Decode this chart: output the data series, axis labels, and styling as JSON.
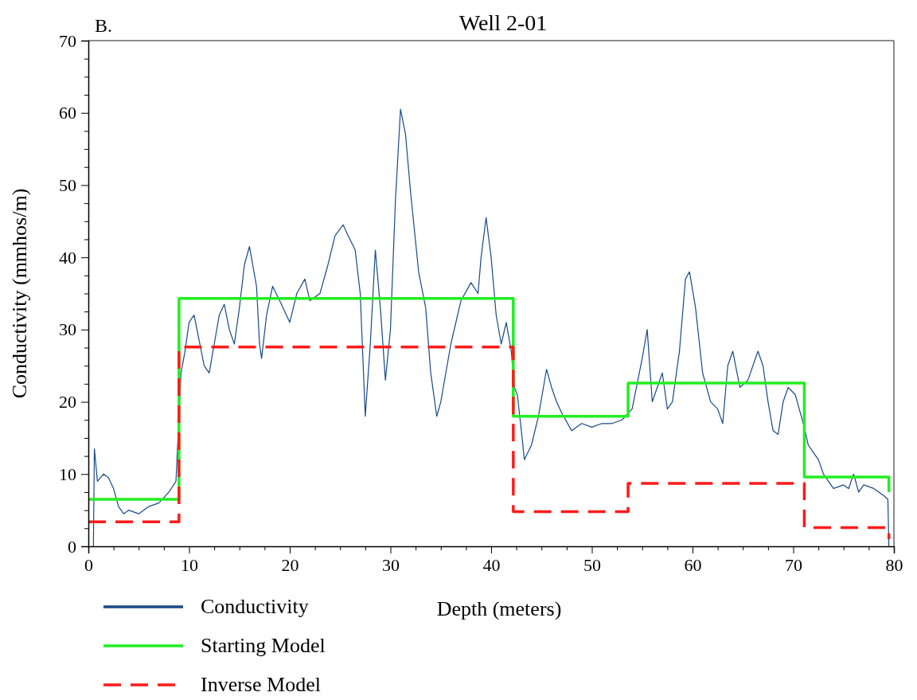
{
  "chart_data": {
    "type": "line",
    "title": "Well 2-01",
    "xlabel": "Depth (meters)",
    "ylabel": "Conductivity (mmhos/m)",
    "annotations": [
      "B."
    ],
    "xlim": [
      0,
      80
    ],
    "ylim": [
      0,
      70
    ],
    "xticks": [
      0,
      {
        "value": 2.5,
        "label": null
      },
      {
        "value": 5,
        "label": null
      },
      {
        "value": 7.5,
        "label": null
      },
      10,
      {
        "value": 12.5,
        "label": null
      },
      {
        "value": 15,
        "label": null
      },
      {
        "value": 17.5,
        "label": null
      },
      20,
      {
        "value": 22.5,
        "label": null
      },
      {
        "value": 25,
        "label": null
      },
      {
        "value": 27.5,
        "label": null
      },
      30,
      {
        "value": 32.5,
        "label": null
      },
      {
        "value": 35,
        "label": null
      },
      {
        "value": 37.5,
        "label": null
      },
      40,
      {
        "value": 42.5,
        "label": null
      },
      {
        "value": 45,
        "label": null
      },
      {
        "value": 47.5,
        "label": null
      },
      50,
      {
        "value": 52.5,
        "label": null
      },
      {
        "value": 55,
        "label": null
      },
      {
        "value": 57.5,
        "label": null
      },
      60,
      {
        "value": 62.5,
        "label": null
      },
      {
        "value": 65,
        "label": null
      },
      {
        "value": 67.5,
        "label": null
      },
      70,
      {
        "value": 72.5,
        "label": null
      },
      {
        "value": 75,
        "label": null
      },
      {
        "value": 77.5,
        "label": null
      },
      80
    ],
    "yticks": [
      0,
      {
        "value": 2.5,
        "label": null
      },
      {
        "value": 5,
        "label": null
      },
      {
        "value": 7.5,
        "label": null
      },
      10,
      {
        "value": 12.5,
        "label": null
      },
      {
        "value": 15,
        "label": null
      },
      {
        "value": 17.5,
        "label": null
      },
      20,
      {
        "value": 22.5,
        "label": null
      },
      {
        "value": 25,
        "label": null
      },
      {
        "value": 27.5,
        "label": null
      },
      30,
      {
        "value": 32.5,
        "label": null
      },
      {
        "value": 35,
        "label": null
      },
      {
        "value": 37.5,
        "label": null
      },
      40,
      {
        "value": 42.5,
        "label": null
      },
      {
        "value": 45,
        "label": null
      },
      {
        "value": 47.5,
        "label": null
      },
      50,
      {
        "value": 52.5,
        "label": null
      },
      {
        "value": 55,
        "label": null
      },
      {
        "value": 57.5,
        "label": null
      },
      60,
      {
        "value": 62.5,
        "label": null
      },
      {
        "value": 65,
        "label": null
      },
      {
        "value": 67.5,
        "label": null
      },
      70
    ],
    "grid": false,
    "legend": "bottom left",
    "series": [
      {
        "name": "Conductivity",
        "color": "#174a87",
        "line_style": "solid",
        "x": [
          0.5,
          0.6,
          0.9,
          1.5,
          2,
          2.5,
          3,
          3.5,
          4,
          5,
          6,
          7,
          8,
          8.7,
          9.2,
          9.6,
          10,
          10.5,
          11,
          11.5,
          12,
          12.5,
          13,
          13.5,
          14,
          14.5,
          15,
          15.5,
          16,
          16.7,
          17,
          17.2,
          17.7,
          18.3,
          19,
          20,
          20.7,
          21.5,
          22,
          23,
          23.8,
          24.5,
          25.3,
          25.8,
          26.5,
          27,
          27.5,
          28,
          28.5,
          29,
          29.5,
          30,
          30.5,
          31,
          31.5,
          32,
          32.8,
          33.5,
          34,
          34.6,
          35,
          36,
          37,
          38,
          38.7,
          39,
          39.5,
          40,
          40.5,
          41,
          41.5,
          42,
          42.3,
          42.6,
          43,
          43.3,
          44,
          44.7,
          45.5,
          46,
          46.5,
          47,
          48,
          49,
          50,
          51,
          52,
          53,
          54,
          55,
          55.5,
          56,
          56.5,
          57,
          57.5,
          58,
          58.7,
          59.3,
          59.7,
          60.3,
          61,
          61.8,
          62.5,
          63,
          63.5,
          64,
          64.7,
          65.5,
          66.5,
          67,
          67.5,
          68,
          68.5,
          69,
          69.5,
          70.2,
          71,
          71.5,
          72,
          72.5,
          73,
          74,
          75,
          75.5,
          76,
          76.5,
          77,
          78,
          79,
          79.4,
          79.5
        ],
        "values": [
          0,
          13.5,
          9,
          10,
          9.5,
          8,
          5.5,
          4.5,
          5,
          4.5,
          5.5,
          6,
          7.5,
          9,
          24,
          27,
          31,
          32,
          28.5,
          25,
          24,
          28,
          32,
          33.5,
          30,
          28,
          33,
          39,
          41.5,
          36,
          28,
          26,
          32,
          36,
          34,
          31,
          35,
          37,
          34,
          35,
          39,
          43,
          44.5,
          43,
          41,
          35,
          18,
          28,
          41,
          33,
          23,
          30,
          48,
          60.5,
          57,
          49,
          38,
          33,
          24,
          18,
          20,
          28,
          34,
          36.5,
          35,
          40,
          45.5,
          40,
          32,
          28,
          31,
          27,
          22,
          21,
          16,
          12,
          14,
          18,
          24.5,
          22,
          20,
          18.5,
          16,
          17,
          16.5,
          17,
          17,
          17.5,
          19,
          26,
          30,
          20,
          22,
          24,
          19,
          20,
          27,
          37,
          38,
          33,
          24,
          20,
          19,
          17,
          25,
          27,
          22,
          23,
          27,
          25,
          20,
          16,
          15.5,
          20,
          22,
          21,
          17,
          14,
          13,
          12,
          10,
          8,
          8.5,
          8,
          10,
          7.5,
          8.5,
          8,
          7,
          6.5,
          0
        ]
      },
      {
        "name": "Starting Model",
        "color": "#22ee22",
        "line_style": "solid",
        "x": [
          0,
          9,
          9,
          42.2,
          42.2,
          53.6,
          53.6,
          71.1,
          71.1,
          79.5,
          79.5
        ],
        "values": [
          6.5,
          6.5,
          34.3,
          34.3,
          18,
          18,
          22.6,
          22.6,
          9.6,
          9.6,
          7.5
        ]
      },
      {
        "name": "Inverse Model",
        "color": "#ff1a1a",
        "line_style": "dashed",
        "x": [
          0,
          9,
          9,
          42.2,
          42.2,
          53.6,
          53.6,
          71.1,
          71.1,
          79.5,
          79.5
        ],
        "values": [
          3.4,
          3.4,
          27.6,
          27.6,
          4.8,
          4.8,
          8.7,
          8.7,
          2.6,
          2.6,
          1
        ]
      }
    ]
  }
}
